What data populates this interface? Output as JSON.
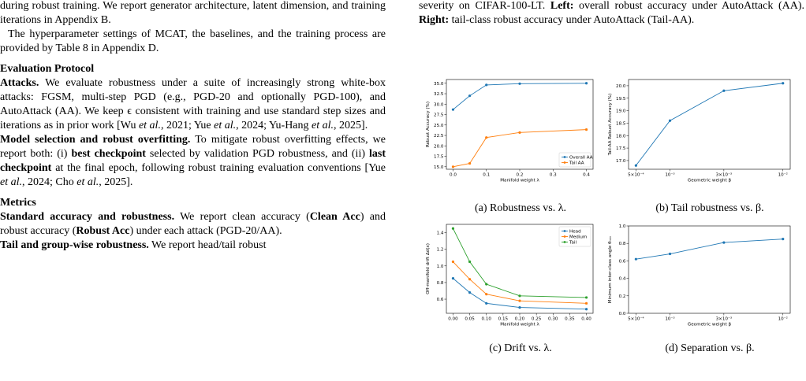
{
  "left_column": {
    "paragraphs": [
      {
        "runs": [
          "during robust training. We report generator architecture, latent dimension, and training iterations in Appendix B."
        ]
      },
      {
        "runs": [
          "The hyperparameter settings of MCAT, the baselines, and the training process are provided by Table 8 in Appendix D."
        ]
      },
      {
        "heading": "Evaluation Protocol"
      },
      {
        "runs": [
          "Attacks.",
          " We evaluate robustness under a suite of increasingly strong white-box attacks: FGSM, multi-step PGD (e.g., PGD-20 and optionally PGD-100), and AutoAttack (AA). We keep ϵ consistent with training and use standard step sizes and iterations as in prior work [Wu ",
          "et al.",
          ", 2021; Yue ",
          "et al.",
          ", 2024; Yu-Hang ",
          "et al.",
          ", 2025]."
        ]
      },
      {
        "runs": [
          "Model selection and robust overfitting.",
          " To mitigate robust overfitting effects, we report both: (i) ",
          "best checkpoint",
          " selected by validation PGD robustness, and (ii) ",
          "last checkpoint",
          " at the final epoch, following robust training evaluation conventions [Yue ",
          "et al.",
          ", 2024; Cho ",
          "et al.",
          ", 2025]."
        ]
      },
      {
        "heading": "Metrics"
      },
      {
        "runs": [
          "Standard accuracy and robustness.",
          " We report clean accuracy (",
          "Clean Acc",
          ") and robust accuracy (",
          "Robust Acc",
          ") under each attack (PGD-20/AA)."
        ]
      },
      {
        "runs": [
          "Tail and group-wise robustness.",
          " We report head/tail robust"
        ]
      }
    ]
  },
  "right_column": {
    "runs": [
      "severity on CIFAR-100-LT. ",
      "Left:",
      " overall robust accuracy under AutoAttack (AA). ",
      "Right:",
      " tail-class robust accuracy under AutoAttack (Tail-AA)."
    ]
  },
  "chart_data": [
    {
      "type": "line",
      "caption": "(a) Robustness vs. λ.",
      "xlabel": "Manifold weight λ",
      "ylabel": "Robust Accuracy (%)",
      "x": [
        0.0,
        0.05,
        0.1,
        0.2,
        0.4
      ],
      "xlim": [
        -0.02,
        0.42
      ],
      "xticks": [
        {
          "value": 0,
          "label": "0.0"
        },
        {
          "value": 0.1,
          "label": "0.1"
        },
        {
          "value": 0.2,
          "label": "0.2"
        },
        {
          "value": 0.3,
          "label": "0.3"
        },
        {
          "value": 0.4,
          "label": "0.4"
        }
      ],
      "ylim": [
        14.4,
        35.9
      ],
      "yticks": [
        {
          "value": 15,
          "label": "15.0"
        },
        {
          "value": 17.5,
          "label": "17.5"
        },
        {
          "value": 20,
          "label": "20.0"
        },
        {
          "value": 22.5,
          "label": "22.5"
        },
        {
          "value": 25,
          "label": "25.0"
        },
        {
          "value": 27.5,
          "label": "27.5"
        },
        {
          "value": 30,
          "label": "30.0"
        },
        {
          "value": 32.5,
          "label": "32.5"
        },
        {
          "value": 35,
          "label": "35.0"
        }
      ],
      "legend": "lower right",
      "series": [
        {
          "name": "Overall AA",
          "color": "#1f77b4",
          "values": [
            28.7,
            32.0,
            34.6,
            34.9,
            35.0
          ]
        },
        {
          "name": "Tail AA",
          "color": "#ff7f0e",
          "values": [
            15.0,
            15.8,
            22.0,
            23.2,
            23.9
          ]
        }
      ]
    },
    {
      "type": "line",
      "caption": "(b) Tail robustness vs. β.",
      "xlabel": "Geometric weight β",
      "ylabel": "Tail-AA Robust Accuracy (%)",
      "log_x": true,
      "x": [
        0.0005,
        0.001,
        0.003,
        0.01
      ],
      "xlim": [
        0.00043,
        0.0116
      ],
      "xticks": [
        {
          "value": 0.0005,
          "label": "5×10⁻⁴"
        },
        {
          "value": 0.001,
          "label": "10⁻³"
        },
        {
          "value": 0.003,
          "label": "3×10⁻³"
        },
        {
          "value": 0.01,
          "label": "10⁻²"
        }
      ],
      "ylim": [
        16.65,
        20.25
      ],
      "yticks": [
        {
          "value": 17,
          "label": "17.0"
        },
        {
          "value": 17.5,
          "label": "17.5"
        },
        {
          "value": 18,
          "label": "18.0"
        },
        {
          "value": 18.5,
          "label": "18.5"
        },
        {
          "value": 19,
          "label": "19.0"
        },
        {
          "value": 19.5,
          "label": "19.5"
        },
        {
          "value": 20,
          "label": "20.0"
        }
      ],
      "series": [
        {
          "color": "#1f77b4",
          "values": [
            16.8,
            18.6,
            19.8,
            20.1
          ]
        }
      ]
    },
    {
      "type": "line",
      "caption": "(c) Drift vs. λ.",
      "xlabel": "Manifold weight λ",
      "ylabel": "Off-manifold drift Δd(x)",
      "x": [
        0.0,
        0.05,
        0.1,
        0.2,
        0.4
      ],
      "xlim": [
        -0.02,
        0.42
      ],
      "xticks": [
        {
          "value": 0,
          "label": "0.00"
        },
        {
          "value": 0.05,
          "label": "0.05"
        },
        {
          "value": 0.1,
          "label": "0.10"
        },
        {
          "value": 0.15,
          "label": "0.15"
        },
        {
          "value": 0.2,
          "label": "0.20"
        },
        {
          "value": 0.25,
          "label": "0.25"
        },
        {
          "value": 0.3,
          "label": "0.30"
        },
        {
          "value": 0.35,
          "label": "0.35"
        },
        {
          "value": 0.4,
          "label": "0.40"
        }
      ],
      "ylim": [
        0.43,
        1.5
      ],
      "yticks": [
        0.6,
        0.8,
        {
          "value": 1,
          "label": "1.0"
        },
        1.2,
        1.4
      ],
      "legend": "upper right",
      "series": [
        {
          "name": "Head",
          "color": "#1f77b4",
          "values": [
            0.85,
            0.68,
            0.55,
            0.5,
            0.48
          ]
        },
        {
          "name": "Medium",
          "color": "#ff7f0e",
          "values": [
            1.05,
            0.84,
            0.66,
            0.58,
            0.55
          ]
        },
        {
          "name": "Tail",
          "color": "#2ca02c",
          "values": [
            1.45,
            1.05,
            0.78,
            0.64,
            0.62
          ]
        }
      ]
    },
    {
      "type": "line",
      "caption": "(d) Separation vs. β.",
      "xlabel": "Geometric weight β",
      "ylabel": "Minimum inter-class angle θₘᵢₙ",
      "log_x": true,
      "x": [
        0.0005,
        0.001,
        0.003,
        0.01
      ],
      "xlim": [
        0.00043,
        0.0116
      ],
      "xticks": [
        {
          "value": 0.0005,
          "label": "5×10⁻⁴"
        },
        {
          "value": 0.001,
          "label": "10⁻³"
        },
        {
          "value": 0.003,
          "label": "3×10⁻³"
        },
        {
          "value": 0.01,
          "label": "10⁻²"
        }
      ],
      "ylim": [
        0,
        1
      ],
      "yticks": [
        {
          "value": 0,
          "label": "0.0"
        },
        0.2,
        0.4,
        0.6,
        0.8,
        {
          "value": 1,
          "label": "1.0"
        }
      ],
      "series": [
        {
          "color": "#1f77b4",
          "values": [
            0.62,
            0.68,
            0.81,
            0.85
          ]
        }
      ]
    }
  ]
}
